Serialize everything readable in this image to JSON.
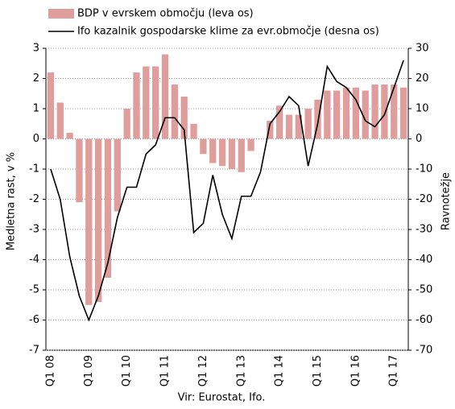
{
  "chart_data": {
    "type": "bar-line",
    "legend": "top-left",
    "categories": [
      "Q1 08",
      null,
      null,
      null,
      "Q1 09",
      null,
      null,
      null,
      "Q1 10",
      null,
      null,
      null,
      "Q1 11",
      null,
      null,
      null,
      "Q1 12",
      null,
      null,
      null,
      "Q1 13",
      null,
      null,
      null,
      "Q1 14",
      null,
      null,
      null,
      "Q1 15",
      null,
      null,
      null,
      "Q1 16",
      null,
      null,
      null,
      "Q1 17",
      null
    ],
    "series": [
      {
        "name": "BDP v evrskem območju (leva os)",
        "type": "bar",
        "color": "#df9d9b",
        "values": [
          2.2,
          1.2,
          0.2,
          -2.1,
          -5.5,
          -5.4,
          -4.6,
          -2.4,
          1.0,
          2.2,
          2.4,
          2.4,
          2.8,
          1.8,
          1.4,
          0.5,
          -0.5,
          -0.8,
          -0.9,
          -1.0,
          -1.1,
          -0.4,
          0.0,
          0.6,
          1.1,
          0.8,
          0.8,
          1.0,
          1.3,
          1.6,
          1.6,
          1.7,
          1.7,
          1.6,
          1.8,
          1.8,
          1.8,
          1.7
        ]
      },
      {
        "name": "Ifo kazalnik gospodarske klime za evr.območje (desna os)",
        "type": "line",
        "axis": "y2",
        "color": "#000000",
        "values": [
          -10,
          -20,
          -39,
          -52,
          -60,
          -52,
          -41,
          -26,
          -16,
          -16,
          -5,
          -2,
          7,
          7,
          3,
          -31,
          -28,
          -12,
          -25,
          -33,
          -19,
          -19,
          -11,
          5,
          9,
          14,
          11,
          -9,
          5,
          24,
          19,
          17,
          13,
          6,
          4,
          8,
          17,
          26
        ]
      }
    ],
    "ylabel": "Medletna rast, v %",
    "y2label": "Ravnotežje",
    "source": "Vir: Eurostat, Ifo.",
    "ylim": [
      -7,
      3
    ],
    "yticks": [
      -7,
      -6,
      -5,
      -4,
      -3,
      -2,
      -1,
      0,
      1,
      2,
      3
    ],
    "y2lim": [
      -70,
      30
    ],
    "y2ticks": [
      -70,
      -60,
      -50,
      -40,
      -30,
      -20,
      -10,
      0,
      10,
      20,
      30
    ],
    "grid": true
  }
}
